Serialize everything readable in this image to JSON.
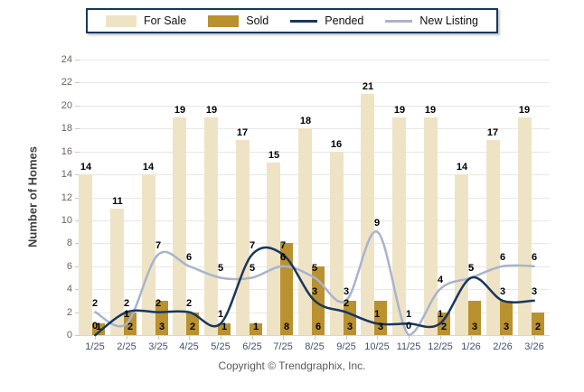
{
  "legend": {
    "items": [
      {
        "label": "For Sale",
        "swatch": "bar",
        "color": "#EFE3C6"
      },
      {
        "label": "Sold",
        "swatch": "bar",
        "color": "#B9912F"
      },
      {
        "label": "Pended",
        "swatch": "line",
        "color": "#17375D"
      },
      {
        "label": "New Listing",
        "swatch": "line",
        "color": "#A8B4CC"
      }
    ]
  },
  "chart_data": {
    "type": "combo-bar-line",
    "categories": [
      "1/25",
      "2/25",
      "3/25",
      "4/25",
      "5/25",
      "6/25",
      "7/25",
      "8/25",
      "9/25",
      "10/25",
      "11/25",
      "12/25",
      "1/26",
      "2/26",
      "3/26"
    ],
    "series": [
      {
        "name": "For Sale",
        "type": "bar",
        "color": "#EFE3C6",
        "values": [
          14,
          11,
          14,
          19,
          19,
          17,
          15,
          18,
          16,
          21,
          19,
          19,
          14,
          17,
          19
        ]
      },
      {
        "name": "Sold",
        "type": "bar",
        "color": "#B9912F",
        "values": [
          1,
          2,
          3,
          2,
          1,
          1,
          8,
          6,
          3,
          3,
          0,
          2,
          3,
          3,
          2
        ]
      },
      {
        "name": "Pended",
        "type": "line",
        "color": "#17375D",
        "values": [
          0,
          2,
          2,
          2,
          1,
          7,
          7,
          3,
          2,
          1,
          1,
          1,
          5,
          3,
          3
        ]
      },
      {
        "name": "New Listing",
        "type": "line",
        "color": "#A8B4CC",
        "values": [
          2,
          1,
          7,
          6,
          5,
          5,
          6,
          5,
          3,
          9,
          0,
          4,
          5,
          6,
          6
        ]
      }
    ],
    "title": "",
    "xlabel": "",
    "ylabel": "Number of Homes",
    "ylim": [
      0,
      24
    ],
    "ytick_step": 2,
    "grid": true,
    "legend_position": "top"
  },
  "footer": {
    "copyright": "Copyright © Trendgraphix, Inc."
  },
  "colors": {
    "background": "#FFFFFF",
    "grid_line": "#E8E8E8",
    "axis_line": "#D6D6D6",
    "tick_mark": "#C9C9C9",
    "y_tick_text": "#6A655A",
    "x_tick_text": "#415070",
    "data_label": "#000000",
    "legend_border": "#17375D"
  }
}
